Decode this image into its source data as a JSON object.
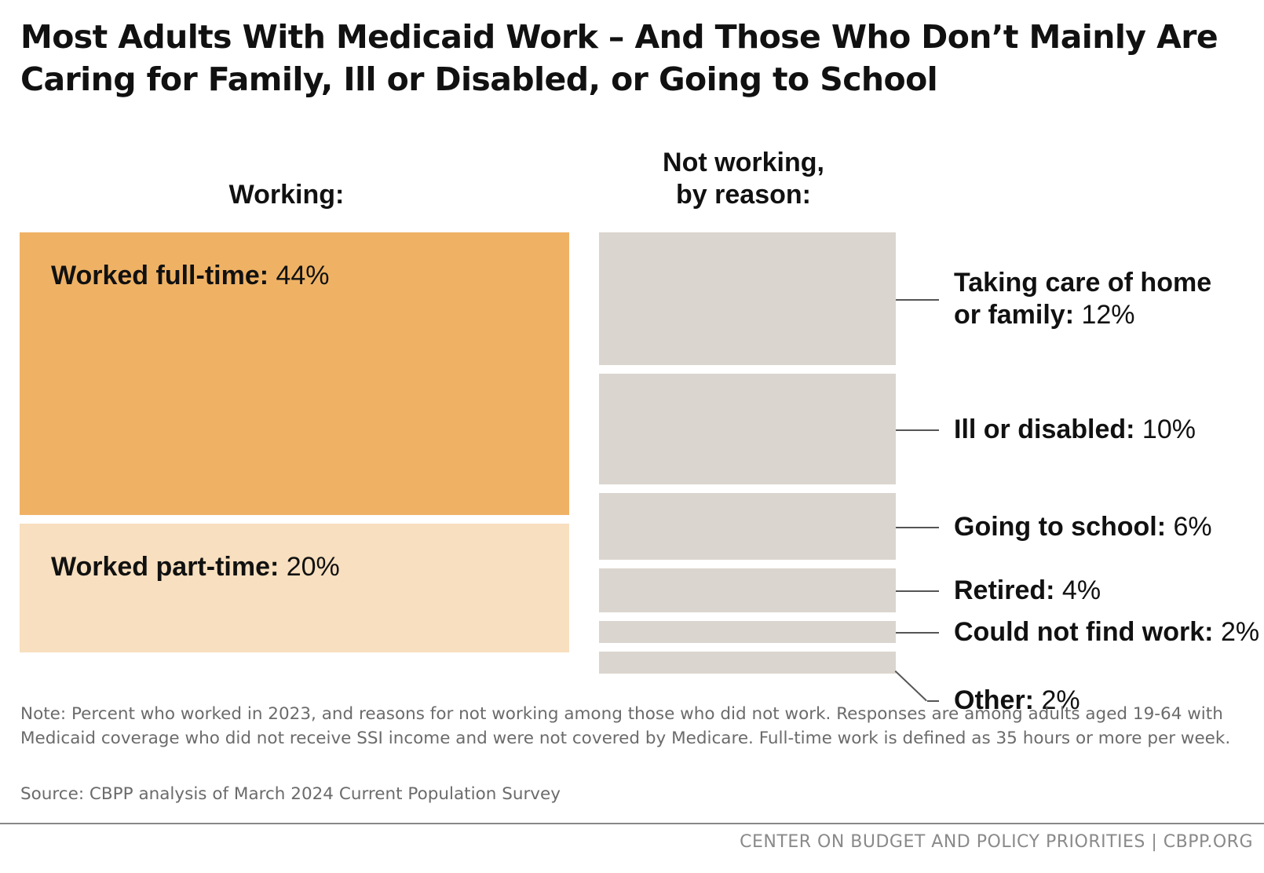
{
  "title": "Most Adults With Medicaid Work – And Those Who Don’t Mainly Are Caring for Family, Ill or Disabled, or Going to School",
  "colors": {
    "full_time": "#efb265",
    "part_time": "#f7dfbf",
    "not_working": "#dbd5cf",
    "leader": "#555555"
  },
  "chart_data": {
    "type": "treemap",
    "unit": "%",
    "groups": [
      {
        "heading": [
          "Working:"
        ],
        "items": [
          {
            "name": "Worked full-time:",
            "value": 44,
            "value_label": "44%"
          },
          {
            "name": "Worked part-time:",
            "value": 20,
            "value_label": "20%"
          }
        ]
      },
      {
        "heading": [
          "Not working,",
          "by reason:"
        ],
        "items": [
          {
            "name_lines": [
              "Taking care of home",
              "or family:"
            ],
            "value": 12,
            "value_label": "12%"
          },
          {
            "name_lines": [
              "Ill or disabled:"
            ],
            "value": 10,
            "value_label": "10%"
          },
          {
            "name_lines": [
              "Going to school:"
            ],
            "value": 6,
            "value_label": "6%"
          },
          {
            "name_lines": [
              "Retired:"
            ],
            "value": 4,
            "value_label": "4%"
          },
          {
            "name_lines": [
              "Could not find work:"
            ],
            "value": 2,
            "value_label": "2%"
          },
          {
            "name_lines": [
              "Other:"
            ],
            "value": 2,
            "value_label": "2%"
          }
        ]
      }
    ]
  },
  "note": "Note: Percent who worked in 2023, and reasons for not working among those who did not work. Responses are among adults aged 19-64 with Medicaid coverage who did not receive SSI income and were not covered by Medicare. Full-time work is defined as 35 hours or more per week.",
  "source": "Source: CBPP analysis of March 2024 Current Population Survey",
  "footer": "CENTER ON BUDGET AND POLICY PRIORITIES | CBPP.ORG"
}
